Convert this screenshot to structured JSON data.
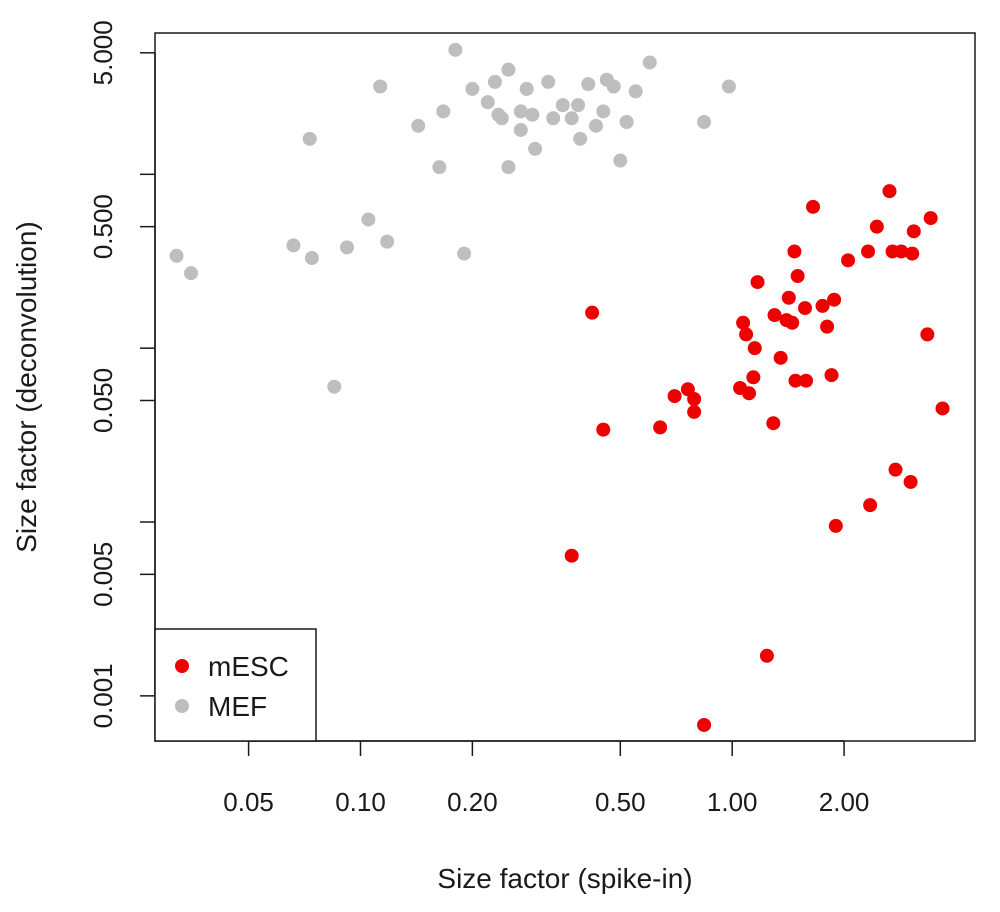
{
  "chart_data": {
    "type": "scatter",
    "xlabel": "Size factor (spike-in)",
    "ylabel": "Size factor (deconvolution)",
    "x_scale": "log",
    "y_scale": "log",
    "xlim": [
      0.028,
      4.5
    ],
    "ylim": [
      0.00055,
      6.5
    ],
    "x_ticks": [
      {
        "value": 0.05,
        "label": "0.05"
      },
      {
        "value": 0.1,
        "label": "0.10"
      },
      {
        "value": 0.2,
        "label": "0.20"
      },
      {
        "value": 0.5,
        "label": "0.50"
      },
      {
        "value": 1,
        "label": "1.00"
      },
      {
        "value": 2,
        "label": "2.00"
      }
    ],
    "y_ticks": [
      {
        "value": 0.001,
        "label": "0.001",
        "labeled": true
      },
      {
        "value": 0.005,
        "label": "0.005",
        "labeled": true
      },
      {
        "value": 0.01,
        "label": "",
        "labeled": false
      },
      {
        "value": 0.05,
        "label": "0.050",
        "labeled": true
      },
      {
        "value": 0.1,
        "label": "",
        "labeled": false
      },
      {
        "value": 0.5,
        "label": "0.500",
        "labeled": true
      },
      {
        "value": 1,
        "label": "",
        "labeled": false
      },
      {
        "value": 5,
        "label": "5.000",
        "labeled": true
      }
    ],
    "grid": false,
    "legend_position": "bottom-left",
    "series": [
      {
        "name": "mESC",
        "color": "#ee0000",
        "points": [
          [
            0.42,
            0.16
          ],
          [
            0.37,
            0.0064
          ],
          [
            0.45,
            0.034
          ],
          [
            0.64,
            0.035
          ],
          [
            0.7,
            0.053
          ],
          [
            0.76,
            0.058
          ],
          [
            0.79,
            0.051
          ],
          [
            0.79,
            0.043
          ],
          [
            0.84,
            0.00068
          ],
          [
            1.05,
            0.059
          ],
          [
            1.07,
            0.14
          ],
          [
            1.09,
            0.12
          ],
          [
            1.11,
            0.055
          ],
          [
            1.14,
            0.068
          ],
          [
            1.15,
            0.1
          ],
          [
            1.17,
            0.24
          ],
          [
            1.24,
            0.0017
          ],
          [
            1.29,
            0.037
          ],
          [
            1.3,
            0.155
          ],
          [
            1.35,
            0.088
          ],
          [
            1.4,
            0.145
          ],
          [
            1.42,
            0.195
          ],
          [
            1.45,
            0.14
          ],
          [
            1.47,
            0.36
          ],
          [
            1.48,
            0.065
          ],
          [
            1.5,
            0.26
          ],
          [
            1.57,
            0.17
          ],
          [
            1.58,
            0.065
          ],
          [
            1.65,
            0.65
          ],
          [
            1.75,
            0.175
          ],
          [
            1.8,
            0.133
          ],
          [
            1.85,
            0.07
          ],
          [
            1.88,
            0.19
          ],
          [
            1.9,
            0.0095
          ],
          [
            2.05,
            0.32
          ],
          [
            2.32,
            0.36
          ],
          [
            2.35,
            0.0125
          ],
          [
            2.45,
            0.5
          ],
          [
            2.65,
            0.8
          ],
          [
            2.7,
            0.36
          ],
          [
            2.75,
            0.02
          ],
          [
            2.85,
            0.36
          ],
          [
            3.02,
            0.017
          ],
          [
            3.05,
            0.35
          ],
          [
            3.08,
            0.47
          ],
          [
            3.35,
            0.12
          ],
          [
            3.42,
            0.56
          ],
          [
            3.68,
            0.045
          ]
        ]
      },
      {
        "name": "MEF",
        "color": "#bebebe",
        "points": [
          [
            0.032,
            0.34
          ],
          [
            0.035,
            0.27
          ],
          [
            0.066,
            0.39
          ],
          [
            0.073,
            1.6
          ],
          [
            0.074,
            0.33
          ],
          [
            0.085,
            0.06
          ],
          [
            0.092,
            0.38
          ],
          [
            0.105,
            0.55
          ],
          [
            0.113,
            3.2
          ],
          [
            0.118,
            0.41
          ],
          [
            0.143,
            1.9
          ],
          [
            0.163,
            1.1
          ],
          [
            0.167,
            2.3
          ],
          [
            0.18,
            5.2
          ],
          [
            0.19,
            0.35
          ],
          [
            0.2,
            3.1
          ],
          [
            0.22,
            2.6
          ],
          [
            0.23,
            3.4
          ],
          [
            0.235,
            2.2
          ],
          [
            0.24,
            2.1
          ],
          [
            0.25,
            1.1
          ],
          [
            0.25,
            4.0
          ],
          [
            0.27,
            1.8
          ],
          [
            0.27,
            2.3
          ],
          [
            0.28,
            3.1
          ],
          [
            0.29,
            2.2
          ],
          [
            0.295,
            1.4
          ],
          [
            0.32,
            3.4
          ],
          [
            0.33,
            2.1
          ],
          [
            0.35,
            2.5
          ],
          [
            0.37,
            2.1
          ],
          [
            0.385,
            2.5
          ],
          [
            0.39,
            1.6
          ],
          [
            0.41,
            3.3
          ],
          [
            0.43,
            1.9
          ],
          [
            0.45,
            2.3
          ],
          [
            0.46,
            3.5
          ],
          [
            0.48,
            3.2
          ],
          [
            0.5,
            1.2
          ],
          [
            0.52,
            2.0
          ],
          [
            0.55,
            3.0
          ],
          [
            0.6,
            4.4
          ],
          [
            0.84,
            2.0
          ],
          [
            0.98,
            3.2
          ]
        ]
      }
    ]
  }
}
